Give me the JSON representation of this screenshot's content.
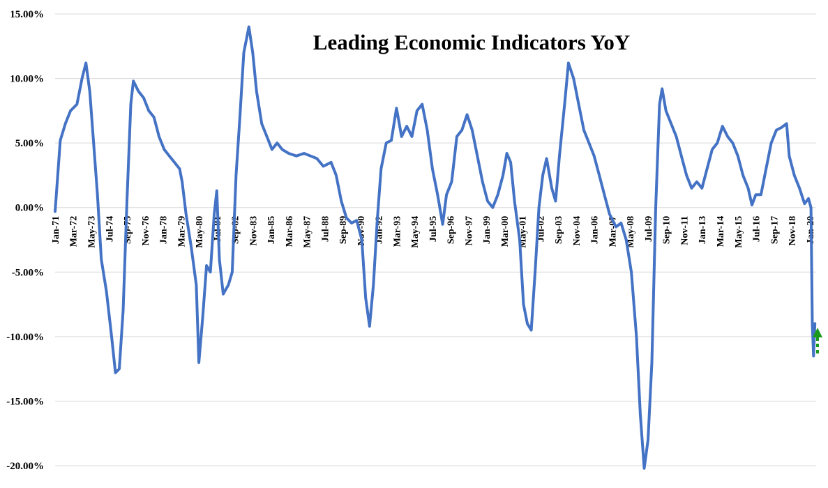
{
  "chart_data": {
    "type": "line",
    "title": "Leading Economic Indicators YoY",
    "xlabel": "",
    "ylabel": "",
    "ylim": [
      -20,
      15
    ],
    "xlim": [
      "1971-01",
      "2020-06"
    ],
    "grid": "horizontal",
    "line_color": "#4472c4",
    "annotation": {
      "type": "up-arrow",
      "color": "#1a9a1a",
      "at": "2020-06"
    },
    "y_ticks": [
      "15.00%",
      "10.00%",
      "5.00%",
      "0.00%",
      "-5.00%",
      "-10.00%",
      "-15.00%",
      "-20.00%"
    ],
    "x_ticks": [
      "Jan-71",
      "Mar-72",
      "May-73",
      "Jul-74",
      "Sep-75",
      "Nov-76",
      "Jan-78",
      "Mar-79",
      "May-80",
      "Jul-81",
      "Sep-82",
      "Nov-83",
      "Jan-85",
      "Mar-86",
      "May-87",
      "Jul-88",
      "Sep-89",
      "Nov-90",
      "Jan-92",
      "Mar-93",
      "May-94",
      "Jul-95",
      "Sep-96",
      "Nov-97",
      "Jan-99",
      "Mar-00",
      "May-01",
      "Jul-02",
      "Sep-03",
      "Nov-04",
      "Jan-06",
      "Mar-07",
      "May-08",
      "Jul-09",
      "Sep-10",
      "Nov-11",
      "Jan-13",
      "Mar-14",
      "May-15",
      "Jul-16",
      "Sep-17",
      "Nov-18",
      "Jan-20"
    ],
    "series": [
      {
        "values": [
          [
            "1971-01",
            -0.3
          ],
          [
            "1971-05",
            5.2
          ],
          [
            "1971-09",
            6.5
          ],
          [
            "1972-01",
            7.5
          ],
          [
            "1972-06",
            8.0
          ],
          [
            "1972-10",
            10.0
          ],
          [
            "1973-01",
            11.2
          ],
          [
            "1973-04",
            9.0
          ],
          [
            "1973-07",
            5.0
          ],
          [
            "1973-10",
            1.0
          ],
          [
            "1974-01",
            -4.0
          ],
          [
            "1974-05",
            -6.5
          ],
          [
            "1974-09",
            -10.0
          ],
          [
            "1974-12",
            -12.8
          ],
          [
            "1975-03",
            -12.5
          ],
          [
            "1975-06",
            -8.0
          ],
          [
            "1975-09",
            0.5
          ],
          [
            "1975-12",
            8.0
          ],
          [
            "1976-02",
            9.8
          ],
          [
            "1976-06",
            9.0
          ],
          [
            "1976-10",
            8.5
          ],
          [
            "1977-02",
            7.5
          ],
          [
            "1977-06",
            7.0
          ],
          [
            "1977-10",
            5.5
          ],
          [
            "1978-02",
            4.5
          ],
          [
            "1978-06",
            4.0
          ],
          [
            "1978-10",
            3.5
          ],
          [
            "1979-02",
            3.0
          ],
          [
            "1979-04",
            2.0
          ],
          [
            "1979-07",
            -0.5
          ],
          [
            "1979-11",
            -3.0
          ],
          [
            "1980-03",
            -6.0
          ],
          [
            "1980-05",
            -12.0
          ],
          [
            "1980-08",
            -8.5
          ],
          [
            "1980-11",
            -4.5
          ],
          [
            "1981-02",
            -5.0
          ],
          [
            "1981-05",
            -0.5
          ],
          [
            "1981-07",
            1.3
          ],
          [
            "1981-09",
            -4.0
          ],
          [
            "1981-12",
            -6.7
          ],
          [
            "1982-04",
            -6.0
          ],
          [
            "1982-07",
            -5.0
          ],
          [
            "1982-10",
            2.5
          ],
          [
            "1983-01",
            7.0
          ],
          [
            "1983-04",
            12.0
          ],
          [
            "1983-08",
            14.0
          ],
          [
            "1983-11",
            12.0
          ],
          [
            "1984-02",
            9.0
          ],
          [
            "1984-06",
            6.5
          ],
          [
            "1984-10",
            5.5
          ],
          [
            "1985-02",
            4.5
          ],
          [
            "1985-06",
            5.0
          ],
          [
            "1985-10",
            4.5
          ],
          [
            "1986-03",
            4.2
          ],
          [
            "1986-09",
            4.0
          ],
          [
            "1987-03",
            4.2
          ],
          [
            "1987-08",
            4.0
          ],
          [
            "1988-01",
            3.8
          ],
          [
            "1988-06",
            3.2
          ],
          [
            "1988-12",
            3.5
          ],
          [
            "1989-04",
            2.5
          ],
          [
            "1989-08",
            0.5
          ],
          [
            "1989-12",
            -0.8
          ],
          [
            "1990-04",
            -1.2
          ],
          [
            "1990-08",
            -1.0
          ],
          [
            "1990-12",
            -2.5
          ],
          [
            "1991-03",
            -7.0
          ],
          [
            "1991-06",
            -9.2
          ],
          [
            "1991-09",
            -6.0
          ],
          [
            "1991-12",
            -1.0
          ],
          [
            "1992-03",
            3.0
          ],
          [
            "1992-07",
            5.0
          ],
          [
            "1992-11",
            5.2
          ],
          [
            "1993-03",
            7.7
          ],
          [
            "1993-07",
            5.5
          ],
          [
            "1993-11",
            6.3
          ],
          [
            "1994-03",
            5.5
          ],
          [
            "1994-07",
            7.5
          ],
          [
            "1994-11",
            8.0
          ],
          [
            "1995-03",
            6.0
          ],
          [
            "1995-07",
            3.0
          ],
          [
            "1995-11",
            1.0
          ],
          [
            "1996-03",
            -1.3
          ],
          [
            "1996-06",
            1.0
          ],
          [
            "1996-10",
            2.0
          ],
          [
            "1997-02",
            5.5
          ],
          [
            "1997-06",
            6.0
          ],
          [
            "1997-10",
            7.2
          ],
          [
            "1998-02",
            6.0
          ],
          [
            "1998-06",
            4.0
          ],
          [
            "1998-10",
            2.0
          ],
          [
            "1999-02",
            0.5
          ],
          [
            "1999-06",
            0.0
          ],
          [
            "1999-10",
            1.0
          ],
          [
            "2000-02",
            2.5
          ],
          [
            "2000-05",
            4.2
          ],
          [
            "2000-08",
            3.5
          ],
          [
            "2000-11",
            0.5
          ],
          [
            "2001-03",
            -2.5
          ],
          [
            "2001-06",
            -7.5
          ],
          [
            "2001-09",
            -9.0
          ],
          [
            "2001-12",
            -9.5
          ],
          [
            "2002-03",
            -5.0
          ],
          [
            "2002-06",
            0.0
          ],
          [
            "2002-09",
            2.5
          ],
          [
            "2002-12",
            3.8
          ],
          [
            "2003-04",
            1.5
          ],
          [
            "2003-07",
            0.5
          ],
          [
            "2003-10",
            4.0
          ],
          [
            "2004-02",
            8.0
          ],
          [
            "2004-05",
            11.2
          ],
          [
            "2004-09",
            10.0
          ],
          [
            "2005-01",
            8.0
          ],
          [
            "2005-05",
            6.0
          ],
          [
            "2005-09",
            5.0
          ],
          [
            "2006-01",
            4.0
          ],
          [
            "2006-05",
            2.5
          ],
          [
            "2006-09",
            1.0
          ],
          [
            "2007-01",
            -0.5
          ],
          [
            "2007-06",
            -1.5
          ],
          [
            "2007-10",
            -1.2
          ],
          [
            "2008-02",
            -2.5
          ],
          [
            "2008-06",
            -5.0
          ],
          [
            "2008-10",
            -10.0
          ],
          [
            "2009-01",
            -16.0
          ],
          [
            "2009-04",
            -20.2
          ],
          [
            "2009-07",
            -18.0
          ],
          [
            "2009-10",
            -12.0
          ],
          [
            "2010-01",
            0.0
          ],
          [
            "2010-04",
            8.0
          ],
          [
            "2010-06",
            9.2
          ],
          [
            "2010-09",
            7.5
          ],
          [
            "2011-01",
            6.5
          ],
          [
            "2011-05",
            5.5
          ],
          [
            "2011-09",
            4.0
          ],
          [
            "2012-01",
            2.5
          ],
          [
            "2012-05",
            1.5
          ],
          [
            "2012-09",
            2.0
          ],
          [
            "2013-01",
            1.5
          ],
          [
            "2013-05",
            3.0
          ],
          [
            "2013-09",
            4.5
          ],
          [
            "2014-01",
            5.0
          ],
          [
            "2014-05",
            6.3
          ],
          [
            "2014-09",
            5.5
          ],
          [
            "2015-01",
            5.0
          ],
          [
            "2015-05",
            4.0
          ],
          [
            "2015-09",
            2.5
          ],
          [
            "2016-01",
            1.5
          ],
          [
            "2016-04",
            0.2
          ],
          [
            "2016-07",
            1.0
          ],
          [
            "2016-11",
            1.0
          ],
          [
            "2017-03",
            3.0
          ],
          [
            "2017-07",
            5.0
          ],
          [
            "2017-11",
            6.0
          ],
          [
            "2018-03",
            6.2
          ],
          [
            "2018-07",
            6.5
          ],
          [
            "2018-09",
            4.0
          ],
          [
            "2019-01",
            2.5
          ],
          [
            "2019-05",
            1.5
          ],
          [
            "2019-09",
            0.3
          ],
          [
            "2019-12",
            0.7
          ],
          [
            "2020-02",
            0.0
          ],
          [
            "2020-03",
            -9.0
          ],
          [
            "2020-04",
            -11.5
          ],
          [
            "2020-05",
            -9.0
          ]
        ]
      }
    ]
  }
}
